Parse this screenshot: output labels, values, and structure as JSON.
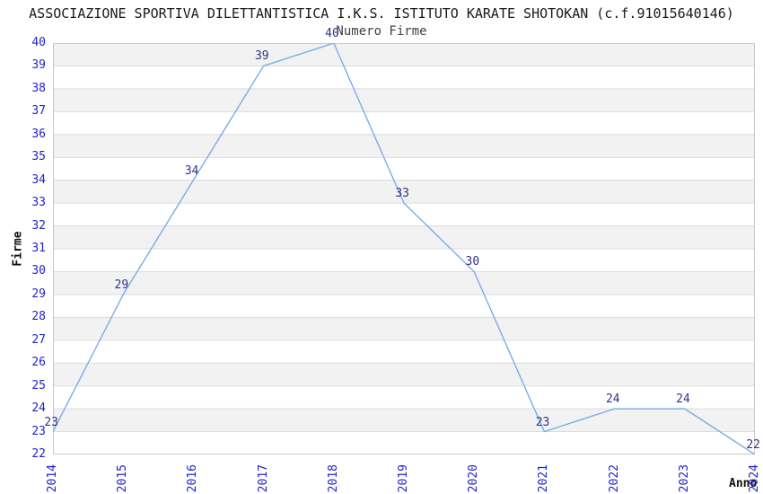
{
  "page": {
    "title": "ASSOCIAZIONE SPORTIVA DILETTANTISTICA I.K.S. ISTITUTO KARATE SHOTOKAN (c.f.91015640146)"
  },
  "chart_data": {
    "type": "line",
    "title": "Numero Firme",
    "xlabel": "Anno",
    "ylabel": "Firme",
    "categories": [
      "2014",
      "2015",
      "2016",
      "2017",
      "2018",
      "2019",
      "2020",
      "2021",
      "2022",
      "2023",
      "2024"
    ],
    "values": [
      23,
      29,
      34,
      39,
      40,
      33,
      30,
      23,
      24,
      24,
      22
    ],
    "ylim": [
      22,
      40
    ],
    "ytick_step": 1,
    "grid": "horizontal-only",
    "bands": "alternating gray stripes, one unit tall, gray on odd lower bound",
    "legend": "none",
    "data_labels": "value shown at upper-left of each point",
    "colors": {
      "line": "#7aade8",
      "tick_label": "#2222cc",
      "data_label": "#333388",
      "band_fill": "#f2f2f2",
      "gridline": "#dcdcdc",
      "plot_border": "#c9c9c9",
      "title_text": "#1a1a1a",
      "subtitle_text": "#404040",
      "axis_name_text": "#111111",
      "background": "#ffffff"
    }
  }
}
